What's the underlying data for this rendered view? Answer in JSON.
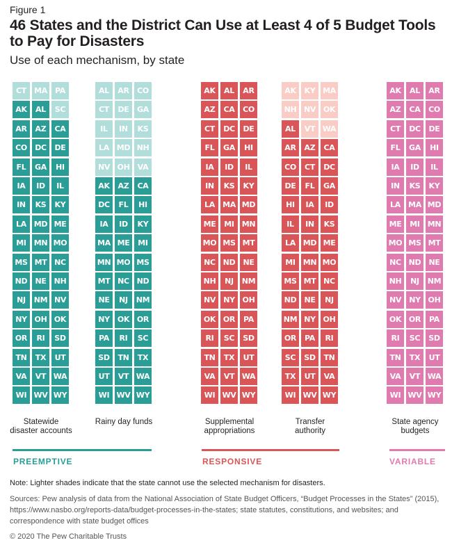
{
  "figure_label": "Figure 1",
  "title": "46 States and the District Can Use at Least 4 of 5 Budget Tools to Pay for Disasters",
  "subtitle": "Use of each mechanism, by state",
  "colors": {
    "preemptive_dark": "#2a9d96",
    "preemptive_light": "#b1dedb",
    "responsive_dark": "#d95558",
    "responsive_light": "#f9cdc6",
    "variable_dark": "#e07bb0",
    "variable_light": "#f5c9df"
  },
  "chart_data": {
    "type": "table",
    "title": "46 States and the District Can Use at Least 4 of 5 Budget Tools to Pay for Disasters",
    "subtitle": "Use of each mechanism, by state",
    "legend": "Lighter shades indicate that the state cannot use the selected mechanism for disasters.",
    "groups": [
      {
        "name": "PREEMPTIVE",
        "color": "#2a9d96",
        "mechanisms": [
          "Statewide disaster accounts",
          "Rainy day funds"
        ]
      },
      {
        "name": "RESPONSIVE",
        "color": "#d95558",
        "mechanisms": [
          "Supplemental appropriations",
          "Transfer authority"
        ]
      },
      {
        "name": "VARIABLE",
        "color": "#e07bb0",
        "mechanisms": [
          "State agency budgets"
        ]
      }
    ],
    "mechanisms": [
      {
        "name": "Statewide disaster accounts",
        "label_lines": [
          "Statewide",
          "disaster accounts"
        ],
        "group": "PREEMPTIVE",
        "cannot_use": [
          "CT",
          "MA",
          "PA",
          "SC"
        ],
        "can_use": [
          "AK",
          "AL",
          "AR",
          "AZ",
          "CA",
          "CO",
          "DC",
          "DE",
          "FL",
          "GA",
          "HI",
          "IA",
          "ID",
          "IL",
          "IN",
          "KS",
          "KY",
          "LA",
          "MD",
          "ME",
          "MI",
          "MN",
          "MO",
          "MS",
          "MT",
          "NC",
          "ND",
          "NE",
          "NH",
          "NJ",
          "NM",
          "NV",
          "NY",
          "OH",
          "OK",
          "OR",
          "RI",
          "SD",
          "TN",
          "TX",
          "UT",
          "VA",
          "VT",
          "WA",
          "WI",
          "WV",
          "WY"
        ],
        "tiles": [
          "CT",
          "MA",
          "PA",
          "AK",
          "AL",
          "SC",
          "AR",
          "AZ",
          "CA",
          "CO",
          "DC",
          "DE",
          "FL",
          "GA",
          "HI",
          "IA",
          "ID",
          "IL",
          "IN",
          "KS",
          "KY",
          "LA",
          "MD",
          "ME",
          "MI",
          "MN",
          "MO",
          "MS",
          "MT",
          "NC",
          "ND",
          "NE",
          "NH",
          "NJ",
          "NM",
          "NV",
          "NY",
          "OH",
          "OK",
          "OR",
          "RI",
          "SD",
          "TN",
          "TX",
          "UT",
          "VA",
          "VT",
          "WA",
          "WI",
          "WV",
          "WY"
        ],
        "tile_light": [
          "CT",
          "MA",
          "PA",
          "SC"
        ]
      },
      {
        "name": "Rainy day funds",
        "label_lines": [
          "Rainy day funds",
          ""
        ],
        "group": "PREEMPTIVE",
        "cannot_use": [
          "AL",
          "AR",
          "CO",
          "CT",
          "DE",
          "GA",
          "IL",
          "IN",
          "KS",
          "LA",
          "MD",
          "NH",
          "NV",
          "OH",
          "VA"
        ],
        "can_use": [
          "AK",
          "AZ",
          "CA",
          "DC",
          "FL",
          "HI",
          "IA",
          "ID",
          "KY",
          "MA",
          "ME",
          "MI",
          "MN",
          "MO",
          "MS",
          "MT",
          "NC",
          "ND",
          "NE",
          "NJ",
          "NM",
          "NY",
          "OK",
          "OR",
          "PA",
          "RI",
          "SC",
          "SD",
          "TN",
          "TX",
          "UT",
          "VT",
          "WA",
          "WI",
          "WV",
          "WY"
        ],
        "tiles": [
          "AL",
          "AR",
          "CO",
          "CT",
          "DE",
          "GA",
          "IL",
          "IN",
          "KS",
          "LA",
          "MD",
          "NH",
          "NV",
          "OH",
          "VA",
          "AK",
          "AZ",
          "CA",
          "DC",
          "FL",
          "HI",
          "IA",
          "ID",
          "KY",
          "MA",
          "ME",
          "MI",
          "MN",
          "MO",
          "MS",
          "MT",
          "NC",
          "ND",
          "NE",
          "NJ",
          "NM",
          "NY",
          "OK",
          "OR",
          "PA",
          "RI",
          "SC",
          "SD",
          "TN",
          "TX",
          "UT",
          "VT",
          "WA",
          "WI",
          "WV",
          "WY"
        ],
        "tile_light": [
          "AL",
          "AR",
          "CO",
          "CT",
          "DE",
          "GA",
          "IL",
          "IN",
          "KS",
          "LA",
          "MD",
          "NH",
          "NV",
          "OH",
          "VA"
        ]
      },
      {
        "name": "Supplemental appropriations",
        "label_lines": [
          "Supplemental",
          "appropriations"
        ],
        "group": "RESPONSIVE",
        "cannot_use": [],
        "can_use": [
          "AK",
          "AL",
          "AR",
          "AZ",
          "CA",
          "CO",
          "CT",
          "DC",
          "DE",
          "FL",
          "GA",
          "HI",
          "IA",
          "ID",
          "IL",
          "IN",
          "KS",
          "KY",
          "LA",
          "MA",
          "MD",
          "ME",
          "MI",
          "MN",
          "MO",
          "MS",
          "MT",
          "NC",
          "ND",
          "NE",
          "NH",
          "NJ",
          "NM",
          "NV",
          "NY",
          "OH",
          "OK",
          "OR",
          "PA",
          "RI",
          "SC",
          "SD",
          "TN",
          "TX",
          "UT",
          "VA",
          "VT",
          "WA",
          "WI",
          "WV",
          "WY"
        ],
        "tiles": [
          "AK",
          "AL",
          "AR",
          "AZ",
          "CA",
          "CO",
          "CT",
          "DC",
          "DE",
          "FL",
          "GA",
          "HI",
          "IA",
          "ID",
          "IL",
          "IN",
          "KS",
          "KY",
          "LA",
          "MA",
          "MD",
          "ME",
          "MI",
          "MN",
          "MO",
          "MS",
          "MT",
          "NC",
          "ND",
          "NE",
          "NH",
          "NJ",
          "NM",
          "NV",
          "NY",
          "OH",
          "OK",
          "OR",
          "PA",
          "RI",
          "SC",
          "SD",
          "TN",
          "TX",
          "UT",
          "VA",
          "VT",
          "WA",
          "WI",
          "WV",
          "WY"
        ],
        "tile_light": []
      },
      {
        "name": "Transfer authority",
        "label_lines": [
          "Transfer",
          "authority"
        ],
        "group": "RESPONSIVE",
        "cannot_use": [
          "AK",
          "KY",
          "MA",
          "NH",
          "NV",
          "OK",
          "VT",
          "WA"
        ],
        "can_use": [
          "AL",
          "AR",
          "AZ",
          "CA",
          "CO",
          "CT",
          "DC",
          "DE",
          "FL",
          "GA",
          "HI",
          "IA",
          "ID",
          "IL",
          "IN",
          "KS",
          "LA",
          "MD",
          "ME",
          "MI",
          "MN",
          "MO",
          "MS",
          "MT",
          "NC",
          "ND",
          "NE",
          "NJ",
          "NM",
          "NY",
          "OH",
          "OR",
          "PA",
          "RI",
          "SC",
          "SD",
          "TN",
          "TX",
          "UT",
          "VA",
          "WI",
          "WV",
          "WY"
        ],
        "tiles": [
          "AK",
          "KY",
          "MA",
          "NH",
          "NV",
          "OK",
          "AL",
          "VT",
          "WA",
          "AR",
          "AZ",
          "CA",
          "CO",
          "CT",
          "DC",
          "DE",
          "FL",
          "GA",
          "HI",
          "IA",
          "ID",
          "IL",
          "IN",
          "KS",
          "LA",
          "MD",
          "ME",
          "MI",
          "MN",
          "MO",
          "MS",
          "MT",
          "NC",
          "ND",
          "NE",
          "NJ",
          "NM",
          "NY",
          "OH",
          "OR",
          "PA",
          "RI",
          "SC",
          "SD",
          "TN",
          "TX",
          "UT",
          "VA",
          "WI",
          "WV",
          "WY"
        ],
        "tile_light": [
          "AK",
          "KY",
          "MA",
          "NH",
          "NV",
          "OK",
          "VT",
          "WA"
        ]
      },
      {
        "name": "State agency budgets",
        "label_lines": [
          "State agency",
          "budgets"
        ],
        "group": "VARIABLE",
        "cannot_use": [],
        "can_use": [
          "AK",
          "AL",
          "AR",
          "AZ",
          "CA",
          "CO",
          "CT",
          "DC",
          "DE",
          "FL",
          "GA",
          "HI",
          "IA",
          "ID",
          "IL",
          "IN",
          "KS",
          "KY",
          "LA",
          "MA",
          "MD",
          "ME",
          "MI",
          "MN",
          "MO",
          "MS",
          "MT",
          "NC",
          "ND",
          "NE",
          "NH",
          "NJ",
          "NM",
          "NV",
          "NY",
          "OH",
          "OK",
          "OR",
          "PA",
          "RI",
          "SC",
          "SD",
          "TN",
          "TX",
          "UT",
          "VA",
          "VT",
          "WA",
          "WI",
          "WV",
          "WY"
        ],
        "tiles": [
          "AK",
          "AL",
          "AR",
          "AZ",
          "CA",
          "CO",
          "CT",
          "DC",
          "DE",
          "FL",
          "GA",
          "HI",
          "IA",
          "ID",
          "IL",
          "IN",
          "KS",
          "KY",
          "LA",
          "MA",
          "MD",
          "ME",
          "MI",
          "MN",
          "MO",
          "MS",
          "MT",
          "NC",
          "ND",
          "NE",
          "NH",
          "NJ",
          "NM",
          "NV",
          "NY",
          "OH",
          "OK",
          "OR",
          "PA",
          "RI",
          "SC",
          "SD",
          "TN",
          "TX",
          "UT",
          "VA",
          "VT",
          "WA",
          "WI",
          "WV",
          "WY"
        ],
        "tile_light": []
      }
    ]
  },
  "group_labels": {
    "preemptive": "PREEMPTIVE",
    "responsive": "RESPONSIVE",
    "variable": "VARIABLE"
  },
  "note": "Note: Lighter shades indicate that the state cannot use the selected mechanism for disasters.",
  "sources": "Sources: Pew analysis of data from the National Association of State Budget Officers, “Budget Processes in the States” (2015), https://www.nasbo.org/reports-data/budget-processes-in-the-states; state statutes, constitutions, and websites; and correspondence with state budget offices",
  "copyright": "© 2020 The Pew Charitable Trusts"
}
